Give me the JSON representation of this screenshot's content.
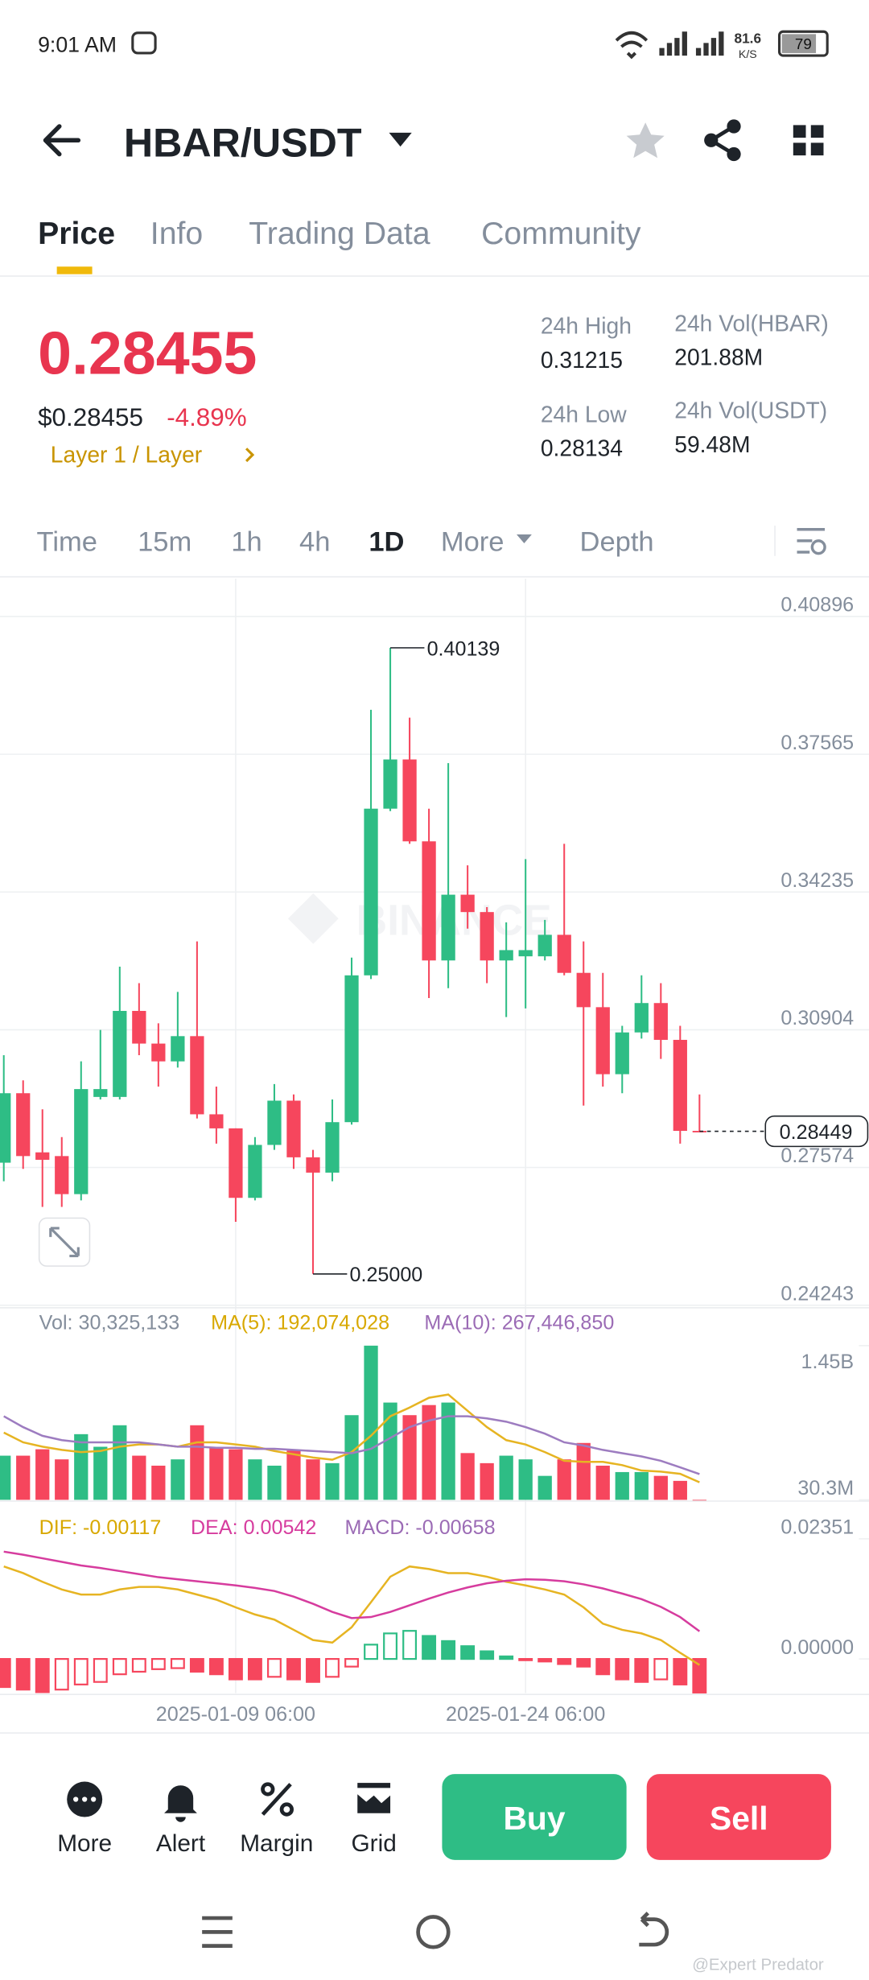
{
  "status_bar": {
    "time": "9:01 AM",
    "speed": "81.6",
    "speed_unit": "K/S",
    "battery": "79"
  },
  "header": {
    "pair": "HBAR/USDT"
  },
  "tabs": [
    "Price",
    "Info",
    "Trading Data",
    "Community"
  ],
  "price": {
    "last": "0.28455",
    "usd": "$0.28455",
    "change": "-4.89%",
    "tag": "Layer 1 / Layer"
  },
  "stats": [
    {
      "label": "24h High",
      "value": "0.31215"
    },
    {
      "label": "24h Vol(HBAR)",
      "value": "201.88M"
    },
    {
      "label": "24h Low",
      "value": "0.28134"
    },
    {
      "label": "24h Vol(USDT)",
      "value": "59.48M"
    }
  ],
  "intervals": [
    "Time",
    "15m",
    "1h",
    "4h",
    "1D",
    "More",
    "Depth"
  ],
  "watermark": "BINANCE",
  "chart_data": [
    {
      "type": "candlestick",
      "up_color": "#2ebd85",
      "down_color": "#f6465d",
      "grid": true,
      "categories": [
        null,
        null,
        null,
        null,
        null,
        null,
        null,
        null,
        null,
        null,
        null,
        null,
        "2025-01-09 06:00",
        null,
        null,
        null,
        null,
        null,
        null,
        null,
        null,
        null,
        null,
        null,
        null,
        null,
        null,
        "2025-01-24 06:00",
        null,
        null,
        null,
        null,
        null,
        null,
        null,
        null,
        null
      ],
      "open": [
        0.2769,
        0.2937,
        0.2794,
        0.2785,
        0.2693,
        0.2928,
        0.2928,
        0.3136,
        0.3057,
        0.3014,
        0.3075,
        0.2886,
        0.2852,
        0.2684,
        0.2812,
        0.2919,
        0.2782,
        0.2745,
        0.2867,
        0.3222,
        0.3625,
        0.3744,
        0.3546,
        0.3258,
        0.3417,
        0.3375,
        0.3258,
        0.3268,
        0.3268,
        0.332,
        0.3228,
        0.3145,
        0.2983,
        0.3084,
        0.3155,
        0.3066,
        0.2846
      ],
      "high": [
        0.3029,
        0.2968,
        0.2898,
        0.2831,
        0.3014,
        0.309,
        0.3243,
        0.3203,
        0.3106,
        0.3182,
        0.3304,
        0.2953,
        0.2852,
        0.2831,
        0.2959,
        0.2934,
        0.28,
        0.2922,
        0.3265,
        0.3864,
        0.40139,
        0.3845,
        0.3625,
        0.3735,
        0.3488,
        0.3387,
        0.335,
        0.3503,
        0.3356,
        0.354,
        0.3304,
        0.3228,
        0.31,
        0.3222,
        0.3203,
        0.31,
        0.2934
      ],
      "low": [
        0.2724,
        0.2754,
        0.2662,
        0.2662,
        0.2678,
        0.2922,
        0.2922,
        0.3029,
        0.2953,
        0.2999,
        0.2876,
        0.2815,
        0.2626,
        0.2678,
        0.28,
        0.2754,
        0.25,
        0.2724,
        0.2861,
        0.3213,
        0.3619,
        0.354,
        0.3167,
        0.3191,
        0.3335,
        0.3203,
        0.3121,
        0.3142,
        0.3258,
        0.3222,
        0.2907,
        0.2953,
        0.2937,
        0.3069,
        0.302,
        0.2815,
        0.2843
      ],
      "close": [
        0.2937,
        0.2785,
        0.2776,
        0.2693,
        0.2947,
        0.2947,
        0.3136,
        0.3057,
        0.3014,
        0.3075,
        0.2886,
        0.2852,
        0.2684,
        0.2812,
        0.2919,
        0.2782,
        0.2745,
        0.2867,
        0.3222,
        0.3625,
        0.3744,
        0.3546,
        0.3258,
        0.3417,
        0.3375,
        0.3258,
        0.3283,
        0.3283,
        0.332,
        0.3228,
        0.3145,
        0.2983,
        0.3084,
        0.3155,
        0.3066,
        0.2846,
        0.28449
      ],
      "ylim": [
        0.24243,
        0.4181
      ],
      "yticks": [
        0.40896,
        0.37565,
        0.34235,
        0.30904,
        0.27574,
        0.24243
      ],
      "annotations": [
        {
          "value": 0.40139,
          "label": "0.40139"
        },
        {
          "value": 0.25,
          "label": "0.25000"
        }
      ],
      "last_price": 0.28449
    },
    {
      "type": "volume",
      "legend": [
        "Vol: 30,325,133",
        "MA(5): 192,074,028",
        "MA(10): 267,446,850"
      ],
      "values": [
        437000000,
        437000000,
        496000000,
        403000000,
        635000000,
        519000000,
        717000000,
        437000000,
        345000000,
        403000000,
        717000000,
        519000000,
        496000000,
        403000000,
        345000000,
        484000000,
        403000000,
        368000000,
        810000000,
        1450000000,
        926000000,
        810000000,
        903000000,
        926000000,
        461000000,
        368000000,
        437000000,
        403000000,
        251000000,
        403000000,
        554000000,
        345000000,
        286000000,
        286000000,
        251000000,
        205000000,
        30325133
      ],
      "ma5": [
        650000000,
        560000000,
        520000000,
        490000000,
        470000000,
        480000000,
        520000000,
        540000000,
        540000000,
        520000000,
        560000000,
        560000000,
        540000000,
        520000000,
        480000000,
        450000000,
        420000000,
        400000000,
        470000000,
        620000000,
        800000000,
        880000000,
        970000000,
        1000000000,
        850000000,
        700000000,
        580000000,
        540000000,
        470000000,
        390000000,
        380000000,
        380000000,
        350000000,
        300000000,
        290000000,
        270000000,
        192074028
      ],
      "ma10": [
        800000000,
        700000000,
        620000000,
        580000000,
        560000000,
        560000000,
        560000000,
        560000000,
        540000000,
        520000000,
        520000000,
        510000000,
        510000000,
        500000000,
        500000000,
        490000000,
        480000000,
        470000000,
        460000000,
        500000000,
        600000000,
        700000000,
        760000000,
        800000000,
        800000000,
        780000000,
        750000000,
        700000000,
        640000000,
        560000000,
        530000000,
        490000000,
        460000000,
        430000000,
        390000000,
        330000000,
        267446850
      ],
      "ma5_color": "#e6b422",
      "ma10_color": "#9d7cc0",
      "ylim": [
        30300000,
        1787000000
      ],
      "yticks": [
        {
          "value": 1450000000,
          "label": "1.45B"
        },
        {
          "value": 30300000,
          "label": "30.3M"
        }
      ]
    },
    {
      "type": "macd",
      "legend": [
        "DIF: -0.00117",
        "DEA: 0.00542",
        "MACD: -0.00658"
      ],
      "dif": [
        0.0181,
        0.0168,
        0.0151,
        0.0136,
        0.0126,
        0.0126,
        0.0136,
        0.0141,
        0.0141,
        0.0136,
        0.0126,
        0.0116,
        0.0101,
        0.0087,
        0.0077,
        0.0057,
        0.0037,
        0.0032,
        0.0062,
        0.0111,
        0.0161,
        0.0181,
        0.0176,
        0.0168,
        0.0168,
        0.0161,
        0.0151,
        0.0144,
        0.0136,
        0.0126,
        0.0101,
        0.0069,
        0.0057,
        0.005,
        0.0037,
        0.0012,
        -0.00117
      ],
      "dea": [
        0.021,
        0.0204,
        0.0197,
        0.019,
        0.0183,
        0.0178,
        0.0172,
        0.0166,
        0.016,
        0.0156,
        0.0152,
        0.0148,
        0.0144,
        0.0139,
        0.0133,
        0.0122,
        0.0108,
        0.0092,
        0.008,
        0.0082,
        0.0092,
        0.0105,
        0.0118,
        0.013,
        0.014,
        0.0148,
        0.0153,
        0.0156,
        0.0155,
        0.0152,
        0.0146,
        0.0138,
        0.0128,
        0.0117,
        0.0102,
        0.0082,
        0.00542
      ],
      "macd": [
        -0.0055,
        -0.006,
        -0.0065,
        -0.006,
        -0.005,
        -0.0045,
        -0.003,
        -0.0025,
        -0.002,
        -0.0018,
        -0.0025,
        -0.003,
        -0.004,
        -0.004,
        -0.0035,
        -0.004,
        -0.0045,
        -0.0035,
        -0.0015,
        0.0028,
        0.005,
        0.0055,
        0.0045,
        0.0035,
        0.0025,
        0.0015,
        0.0005,
        -0.0002,
        -0.0005,
        -0.001,
        -0.0015,
        -0.003,
        -0.004,
        -0.0045,
        -0.004,
        -0.005,
        -0.00658
      ],
      "dif_color": "#e6b422",
      "dea_color": "#d63c9e",
      "ylim": [
        -0.0067,
        0.0304
      ],
      "yticks": [
        0.02351,
        {
          "value": 0,
          "label": "0.00000"
        }
      ]
    }
  ],
  "bottom_bar": {
    "actions": [
      "More",
      "Alert",
      "Margin",
      "Grid"
    ],
    "buy": "Buy",
    "sell": "Sell"
  },
  "credit": "@Expert Predator"
}
